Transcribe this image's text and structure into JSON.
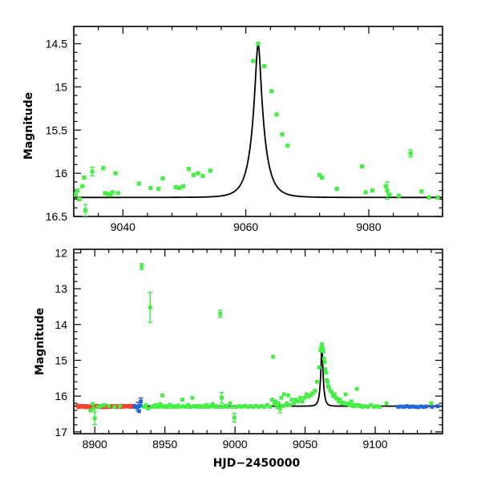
{
  "chart_data": [
    {
      "type": "scatter",
      "name": "zoom-panel",
      "title": "",
      "xlabel": "",
      "ylabel": "Magnitude",
      "xlim": [
        9032,
        9092
      ],
      "ylim": [
        16.5,
        14.3
      ],
      "xticks": [
        9040,
        9060,
        9080
      ],
      "xtick_labels": [
        "9040",
        "9060",
        "9080"
      ],
      "yticks": [
        14.5,
        15,
        15.5,
        16,
        16.5
      ],
      "ytick_labels": [
        "14.5",
        "15",
        "15.5",
        "16",
        "16.5"
      ],
      "colors": {
        "green": "#44ee44",
        "red": "#ee4433",
        "blue": "#2266dd",
        "model": "#000000"
      },
      "model": {
        "t0": 9062.0,
        "tE": 2.0,
        "baseline": 16.28,
        "peak": 14.5
      },
      "series": [
        {
          "name": "green",
          "color": "#44ee44",
          "points": [
            [
              9032.3,
              16.25
            ],
            [
              9032.6,
              16.2
            ],
            [
              9032.9,
              16.3
            ],
            [
              9033.4,
              16.15
            ],
            [
              9033.7,
              16.05
            ],
            [
              9033.9,
              16.43
            ],
            [
              9035.0,
              15.98
            ],
            [
              9036.8,
              15.94
            ],
            [
              9037.1,
              16.23
            ],
            [
              9037.5,
              16.24
            ],
            [
              9038.0,
              16.25
            ],
            [
              9038.3,
              16.22
            ],
            [
              9038.8,
              16.0
            ],
            [
              9039.2,
              16.23
            ],
            [
              9042.6,
              16.12
            ],
            [
              9044.5,
              16.17
            ],
            [
              9045.8,
              16.18
            ],
            [
              9046.5,
              16.06
            ],
            [
              9048.6,
              16.16
            ],
            [
              9049.2,
              16.17
            ],
            [
              9049.8,
              16.15
            ],
            [
              9050.7,
              15.95
            ],
            [
              9051.5,
              16.02
            ],
            [
              9052.2,
              16.0
            ],
            [
              9053.0,
              16.03
            ],
            [
              9054.2,
              15.97
            ],
            [
              9061.2,
              14.7
            ],
            [
              9062.0,
              14.5
            ],
            [
              9063.0,
              14.76
            ],
            [
              9064.2,
              15.05
            ],
            [
              9065.0,
              15.32
            ],
            [
              9065.9,
              15.55
            ],
            [
              9066.8,
              15.68
            ],
            [
              9072.0,
              16.02
            ],
            [
              9072.4,
              16.05
            ],
            [
              9074.8,
              16.18
            ],
            [
              9078.9,
              15.92
            ],
            [
              9079.5,
              16.22
            ],
            [
              9080.6,
              16.2
            ],
            [
              9082.8,
              16.15
            ],
            [
              9083.0,
              16.2
            ],
            [
              9083.4,
              16.25
            ],
            [
              9084.9,
              16.26
            ],
            [
              9086.8,
              15.77
            ],
            [
              9088.6,
              16.21
            ],
            [
              9089.8,
              16.28
            ],
            [
              9091.2,
              16.28
            ]
          ],
          "errorbars": [
            [
              9033.9,
              16.43,
              0.07
            ],
            [
              9035.0,
              15.98,
              0.05
            ],
            [
              9083.0,
              16.2,
              0.1
            ],
            [
              9086.8,
              15.77,
              0.04
            ]
          ]
        }
      ]
    },
    {
      "type": "scatter",
      "name": "full-panel",
      "title": "",
      "xlabel": "HJD−2450000",
      "ylabel": "Magnitude",
      "xlim": [
        8885,
        9148
      ],
      "ylim": [
        17.05,
        11.9
      ],
      "xticks": [
        8900,
        8950,
        9000,
        9050,
        9100
      ],
      "xtick_labels": [
        "8900",
        "8950",
        "9000",
        "9050",
        "9100"
      ],
      "yticks": [
        12,
        13,
        14,
        15,
        16,
        17
      ],
      "ytick_labels": [
        "12",
        "13",
        "14",
        "15",
        "16",
        "17"
      ],
      "model": {
        "t0": 9062.0,
        "tE": 2.0,
        "baseline": 16.28,
        "peak": 14.5
      },
      "series": [
        {
          "name": "red",
          "color": "#ee4433",
          "x_start": 8888,
          "x_end": 8928,
          "step": 0.5,
          "y": 16.29,
          "jitter": 0.02,
          "points": []
        },
        {
          "name": "blue",
          "color": "#2266dd",
          "points": [
            [
              8928.5,
              16.28
            ],
            [
              8929.5,
              16.3
            ],
            [
              8930.2,
              16.32
            ],
            [
              8931.0,
              16.29
            ],
            [
              8931.6,
              16.42
            ],
            [
              8932.2,
              16.27
            ],
            [
              8932.8,
              16.15
            ],
            [
              9116.5,
              16.3
            ],
            [
              9118.5,
              16.29
            ],
            [
              9120.5,
              16.3
            ],
            [
              9122.5,
              16.28
            ],
            [
              9124.5,
              16.3
            ],
            [
              9126.5,
              16.29
            ],
            [
              9128.5,
              16.3
            ],
            [
              9130.5,
              16.31
            ],
            [
              9132.5,
              16.29
            ],
            [
              9134.5,
              16.3
            ],
            [
              9136.5,
              16.29
            ],
            [
              9140.5,
              16.3
            ],
            [
              9144.5,
              16.28
            ]
          ],
          "errorbars": [
            [
              8931.0,
              16.29,
              0.12
            ],
            [
              8932.8,
              16.15,
              0.1
            ]
          ]
        },
        {
          "name": "green",
          "color": "#44ee44",
          "points": [
            [
              8897.0,
              16.4
            ],
            [
              8898.5,
              16.22
            ],
            [
              8899.2,
              16.35
            ],
            [
              8900.0,
              16.62
            ],
            [
              8902.5,
              16.3
            ],
            [
              8904.0,
              16.28
            ],
            [
              8906.5,
              16.25
            ],
            [
              8910.0,
              16.27
            ],
            [
              8914.0,
              16.3
            ],
            [
              8918.0,
              16.28
            ],
            [
              8933.5,
              12.38
            ],
            [
              8935.0,
              16.3
            ],
            [
              8936.5,
              16.25
            ],
            [
              8938.0,
              16.35
            ],
            [
              8939.5,
              13.52
            ],
            [
              8940.5,
              16.3
            ],
            [
              8942.0,
              16.28
            ],
            [
              8943.5,
              16.25
            ],
            [
              8944.0,
              16.3
            ],
            [
              8945.5,
              16.3
            ],
            [
              8946.5,
              16.22
            ],
            [
              8947.5,
              16.27
            ],
            [
              8948.2,
              15.98
            ],
            [
              8949.0,
              16.3
            ],
            [
              8950.5,
              16.28
            ],
            [
              8952.0,
              16.3
            ],
            [
              8953.5,
              16.24
            ],
            [
              8955.0,
              16.3
            ],
            [
              8956.5,
              16.28
            ],
            [
              8958.0,
              16.3
            ],
            [
              8959.5,
              16.26
            ],
            [
              8961.0,
              16.3
            ],
            [
              8962.5,
              16.1
            ],
            [
              8963.5,
              16.28
            ],
            [
              8965.0,
              16.3
            ],
            [
              8966.5,
              16.25
            ],
            [
              8968.0,
              16.3
            ],
            [
              8969.5,
              16.05
            ],
            [
              8970.5,
              16.28
            ],
            [
              8972.0,
              16.3
            ],
            [
              8973.5,
              16.27
            ],
            [
              8975.0,
              16.3
            ],
            [
              8976.5,
              16.28
            ],
            [
              8978.0,
              16.3
            ],
            [
              8979.5,
              16.25
            ],
            [
              8981.0,
              16.3
            ],
            [
              8982.5,
              16.28
            ],
            [
              8984.0,
              16.22
            ],
            [
              8985.5,
              16.3
            ],
            [
              8987.0,
              16.28
            ],
            [
              8988.5,
              16.3
            ],
            [
              8989.5,
              13.7
            ],
            [
              8990.5,
              16.05
            ],
            [
              8991.5,
              16.3
            ],
            [
              8993.0,
              16.27
            ],
            [
              8994.5,
              16.3
            ],
            [
              8996.5,
              16.2
            ],
            [
              8998.0,
              16.3
            ],
            [
              8999.5,
              16.6
            ],
            [
              9001.0,
              16.3
            ],
            [
              9003.0,
              16.28
            ],
            [
              9005.0,
              16.3
            ],
            [
              9007.0,
              16.27
            ],
            [
              9009.0,
              16.3
            ],
            [
              9011.0,
              16.28
            ],
            [
              9013.0,
              16.3
            ],
            [
              9015.0,
              16.27
            ],
            [
              9017.0,
              16.3
            ],
            [
              9019.0,
              16.28
            ],
            [
              9021.0,
              16.3
            ],
            [
              9023.0,
              16.25
            ],
            [
              9025.0,
              16.3
            ],
            [
              9026.5,
              16.1
            ],
            [
              9027.2,
              14.9
            ],
            [
              9028.0,
              16.22
            ],
            [
              9029.0,
              16.15
            ],
            [
              9030.0,
              16.3
            ],
            [
              9031.0,
              16.2
            ],
            [
              9032.0,
              16.35
            ],
            [
              9033.0,
              16.05
            ],
            [
              9034.0,
              16.28
            ],
            [
              9035.0,
              15.95
            ],
            [
              9036.0,
              16.25
            ],
            [
              9037.0,
              16.2
            ],
            [
              9038.0,
              15.98
            ],
            [
              9039.0,
              16.25
            ],
            [
              9040.5,
              16.1
            ],
            [
              9042.0,
              16.2
            ],
            [
              9043.5,
              16.1
            ],
            [
              9045.0,
              16.15
            ],
            [
              9046.5,
              16.05
            ],
            [
              9048.0,
              16.15
            ],
            [
              9049.5,
              16.05
            ],
            [
              9051.0,
              15.95
            ],
            [
              9052.5,
              16.02
            ],
            [
              9054.0,
              15.97
            ],
            [
              9055.5,
              15.92
            ],
            [
              9057.0,
              15.85
            ],
            [
              9058.5,
              15.6
            ],
            [
              9060.0,
              15.2
            ],
            [
              9061.0,
              14.72
            ],
            [
              9061.5,
              14.65
            ],
            [
              9062.0,
              14.55
            ],
            [
              9062.5,
              14.66
            ],
            [
              9063.0,
              14.75
            ],
            [
              9063.5,
              14.95
            ],
            [
              9064.0,
              15.05
            ],
            [
              9064.5,
              15.25
            ],
            [
              9065.0,
              15.35
            ],
            [
              9065.5,
              15.55
            ],
            [
              9066.0,
              15.6
            ],
            [
              9066.5,
              15.72
            ],
            [
              9067.0,
              15.75
            ],
            [
              9068.0,
              15.85
            ],
            [
              9069.0,
              15.9
            ],
            [
              9070.0,
              16.0
            ],
            [
              9071.0,
              15.95
            ],
            [
              9072.0,
              16.05
            ],
            [
              9073.0,
              16.08
            ],
            [
              9074.0,
              16.15
            ],
            [
              9075.0,
              16.1
            ],
            [
              9076.0,
              16.2
            ],
            [
              9077.0,
              16.18
            ],
            [
              9078.0,
              16.2
            ],
            [
              9079.0,
              15.95
            ],
            [
              9080.0,
              16.22
            ],
            [
              9081.0,
              16.2
            ],
            [
              9082.0,
              16.25
            ],
            [
              9083.0,
              16.15
            ],
            [
              9084.0,
              16.28
            ],
            [
              9085.0,
              16.25
            ],
            [
              9086.0,
              16.27
            ],
            [
              9087.0,
              15.8
            ],
            [
              9088.0,
              16.25
            ],
            [
              9089.0,
              16.28
            ],
            [
              9090.0,
              16.27
            ],
            [
              9091.0,
              16.3
            ],
            [
              9093.0,
              16.28
            ],
            [
              9095.0,
              16.3
            ],
            [
              9097.0,
              16.25
            ],
            [
              9099.0,
              16.3
            ],
            [
              9101.0,
              16.28
            ],
            [
              9103.0,
              16.3
            ],
            [
              9108.0,
              16.2
            ],
            [
              9140.0,
              16.2
            ]
          ],
          "errorbars": [
            [
              8900.0,
              16.62,
              0.18
            ],
            [
              8933.5,
              12.38,
              0.08
            ],
            [
              8939.5,
              13.52,
              0.42
            ],
            [
              8989.5,
              13.7,
              0.1
            ],
            [
              8990.5,
              16.05,
              0.15
            ],
            [
              8999.5,
              16.6,
              0.12
            ],
            [
              9032.0,
              16.35,
              0.12
            ]
          ]
        }
      ]
    }
  ]
}
